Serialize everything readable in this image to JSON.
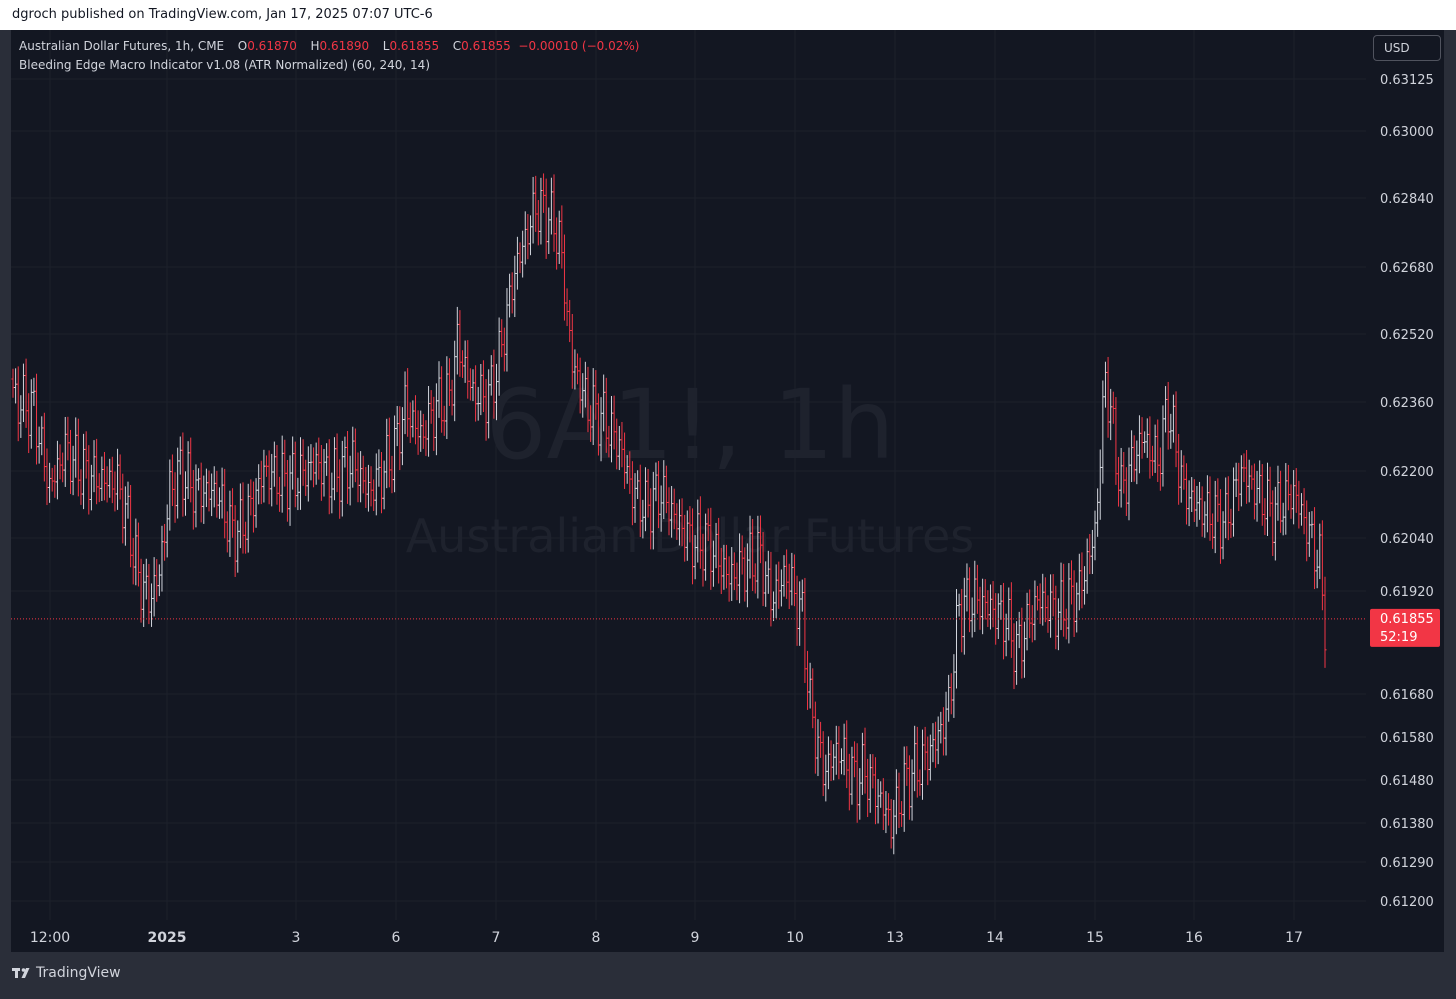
{
  "publisher_line": "dgroch published on TradingView.com, Jan 17, 2025 07:07 UTC-6",
  "legend": {
    "symbol_line": "Australian Dollar Futures, 1h, CME",
    "o_label": "O",
    "o_value": "0.61870",
    "h_label": "H",
    "h_value": "0.61890",
    "l_label": "L",
    "l_value": "0.61855",
    "c_label": "C",
    "c_value": "0.61855",
    "change": "−0.00010 (−0.02%)",
    "indicator_line": "Bleeding Edge Macro Indicator v1.08 (ATR Normalized) (60, 240, 14)"
  },
  "currency_button": "USD",
  "watermark": {
    "symbol": "6A1!, 1h",
    "name": "Australian Dollar Futures"
  },
  "last_price_label": {
    "price": "0.61855",
    "countdown": "52:19"
  },
  "footer": {
    "brand": "TradingView"
  },
  "colors": {
    "up": "#d1d4dc",
    "down": "#f23645",
    "background": "#131722",
    "accent_label": "#f23645"
  },
  "chart_data": {
    "type": "ohlc-bar",
    "symbol": "6A1!",
    "interval": "1h",
    "y_ticks": [
      {
        "label": "0.63125",
        "value": 0.63125
      },
      {
        "label": "0.63000",
        "value": 0.63
      },
      {
        "label": "0.62840",
        "value": 0.6284
      },
      {
        "label": "0.62680",
        "value": 0.6268
      },
      {
        "label": "0.62520",
        "value": 0.6252
      },
      {
        "label": "0.62360",
        "value": 0.6236
      },
      {
        "label": "0.62200",
        "value": 0.622
      },
      {
        "label": "0.62040",
        "value": 0.6204
      },
      {
        "label": "0.61920",
        "value": 0.6192
      },
      {
        "label": "0.61680",
        "value": 0.6168
      },
      {
        "label": "0.61580",
        "value": 0.6158
      },
      {
        "label": "0.61480",
        "value": 0.6148
      },
      {
        "label": "0.61380",
        "value": 0.6138
      },
      {
        "label": "0.61290",
        "value": 0.6129
      },
      {
        "label": "0.61200",
        "value": 0.612
      }
    ],
    "x_ticks": [
      {
        "label": "12:00",
        "bold": false
      },
      {
        "label": "2025",
        "bold": true
      },
      {
        "label": "3",
        "bold": false
      },
      {
        "label": "6",
        "bold": false
      },
      {
        "label": "7",
        "bold": false
      },
      {
        "label": "8",
        "bold": false
      },
      {
        "label": "9",
        "bold": false
      },
      {
        "label": "10",
        "bold": false
      },
      {
        "label": "13",
        "bold": false
      },
      {
        "label": "14",
        "bold": false
      },
      {
        "label": "15",
        "bold": false
      },
      {
        "label": "16",
        "bold": false
      },
      {
        "label": "17",
        "bold": false
      }
    ],
    "last_price": 0.61855,
    "anchors": [
      [
        0,
        0.6237
      ],
      [
        8,
        0.6234
      ],
      [
        14,
        0.6216
      ],
      [
        20,
        0.6225
      ],
      [
        26,
        0.622
      ],
      [
        33,
        0.6218
      ],
      [
        40,
        0.6217
      ],
      [
        44,
        0.6208
      ],
      [
        48,
        0.6195
      ],
      [
        52,
        0.619
      ],
      [
        56,
        0.6196
      ],
      [
        60,
        0.6215
      ],
      [
        64,
        0.622
      ],
      [
        70,
        0.6215
      ],
      [
        78,
        0.6215
      ],
      [
        84,
        0.6205
      ],
      [
        88,
        0.6207
      ],
      [
        92,
        0.6213
      ],
      [
        96,
        0.622
      ],
      [
        102,
        0.6218
      ],
      [
        108,
        0.6218
      ],
      [
        116,
        0.6222
      ],
      [
        122,
        0.6218
      ],
      [
        130,
        0.6222
      ],
      [
        136,
        0.6215
      ],
      [
        140,
        0.6218
      ],
      [
        146,
        0.6225
      ],
      [
        150,
        0.6235
      ],
      [
        156,
        0.6228
      ],
      [
        162,
        0.6235
      ],
      [
        167,
        0.6237
      ],
      [
        170,
        0.625
      ],
      [
        176,
        0.6238
      ],
      [
        182,
        0.6237
      ],
      [
        186,
        0.6246
      ],
      [
        192,
        0.6267
      ],
      [
        200,
        0.6282
      ],
      [
        205,
        0.628
      ],
      [
        209,
        0.6275
      ],
      [
        214,
        0.6245
      ],
      [
        220,
        0.6235
      ],
      [
        226,
        0.6232
      ],
      [
        232,
        0.6226
      ],
      [
        237,
        0.6215
      ],
      [
        242,
        0.6211
      ],
      [
        248,
        0.6215
      ],
      [
        254,
        0.6208
      ],
      [
        260,
        0.6203
      ],
      [
        266,
        0.6203
      ],
      [
        274,
        0.6195
      ],
      [
        280,
        0.6198
      ],
      [
        286,
        0.62
      ],
      [
        290,
        0.619
      ],
      [
        296,
        0.6196
      ],
      [
        302,
        0.6186
      ],
      [
        305,
        0.6165
      ],
      [
        310,
        0.615
      ],
      [
        316,
        0.6155
      ],
      [
        322,
        0.6148
      ],
      [
        326,
        0.615
      ],
      [
        332,
        0.6143
      ],
      [
        336,
        0.6138
      ],
      [
        342,
        0.6148
      ],
      [
        348,
        0.6152
      ],
      [
        354,
        0.6158
      ],
      [
        358,
        0.6165
      ],
      [
        362,
        0.6188
      ],
      [
        368,
        0.619
      ],
      [
        374,
        0.6188
      ],
      [
        380,
        0.6185
      ],
      [
        384,
        0.6178
      ],
      [
        392,
        0.619
      ],
      [
        400,
        0.6187
      ],
      [
        408,
        0.6192
      ],
      [
        414,
        0.6205
      ],
      [
        418,
        0.6242
      ],
      [
        424,
        0.6215
      ],
      [
        432,
        0.6228
      ],
      [
        438,
        0.6222
      ],
      [
        442,
        0.6235
      ],
      [
        448,
        0.6215
      ],
      [
        456,
        0.621
      ],
      [
        464,
        0.6208
      ],
      [
        470,
        0.622
      ],
      [
        476,
        0.6215
      ],
      [
        482,
        0.621
      ],
      [
        490,
        0.6215
      ],
      [
        496,
        0.6205
      ],
      [
        500,
        0.6198
      ],
      [
        502,
        0.6185
      ]
    ]
  }
}
